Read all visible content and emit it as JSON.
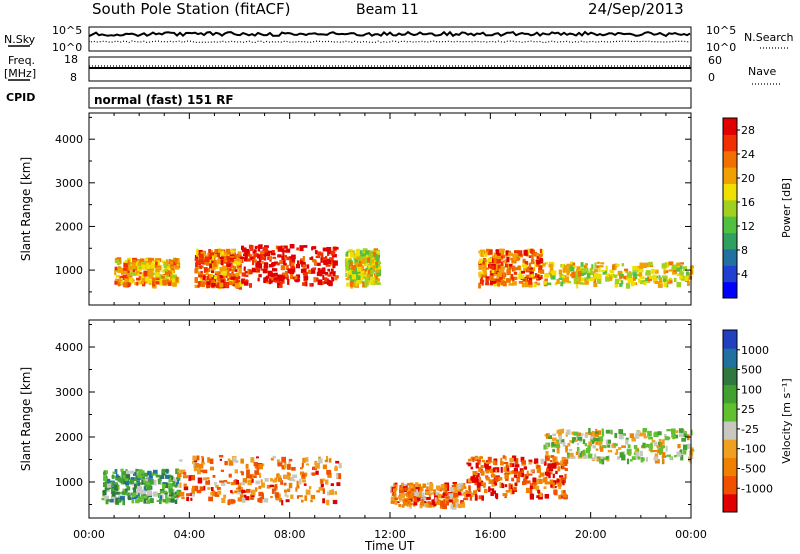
{
  "header": {
    "station": "South Pole Station (fitACF)",
    "beam": "Beam 11",
    "date": "24/Sep/2013"
  },
  "strips": {
    "nsky_label": "N.Sky",
    "nsky_top_tick": "10^5",
    "nsky_bottom_tick": "10^0",
    "nsearch_label": "N.Search",
    "nsearch_top_tick": "10^5",
    "nsearch_bottom_tick": "10^0",
    "freq_label_1": "Freq.",
    "freq_label_2": "[MHz]",
    "freq_top_tick": "18",
    "freq_bottom_tick": "8",
    "nave_label": "Nave",
    "nave_top_tick": "60",
    "nave_bottom_tick": "0",
    "cpid_label": "CPID",
    "cpid_text": "normal (fast) 151 RF"
  },
  "chart_data": [
    {
      "type": "heatmap",
      "panel": "power",
      "ylabel": "Slant Range [km]",
      "xlabel": "",
      "yticks": [
        "1000",
        "2000",
        "3000",
        "4000"
      ],
      "ylim": [
        200,
        4600
      ],
      "xlim_hours": [
        0,
        24
      ],
      "colorbar": {
        "label": "Power [dB]",
        "ticks": [
          "4",
          "8",
          "12",
          "16",
          "20",
          "24",
          "28"
        ],
        "colors": [
          "#0000ff",
          "#2040d0",
          "#2070a0",
          "#30a060",
          "#50c040",
          "#a0d020",
          "#f0e000",
          "#f0a000",
          "#f07000",
          "#f03000",
          "#e00000"
        ]
      },
      "regions": [
        {
          "t": [
            1.0,
            3.5
          ],
          "r": [
            700,
            1300
          ],
          "level": 7
        },
        {
          "t": [
            4.2,
            6.0
          ],
          "r": [
            650,
            1500
          ],
          "level": 8
        },
        {
          "t": [
            6.0,
            9.8
          ],
          "r": [
            700,
            1600
          ],
          "level": 10
        },
        {
          "t": [
            10.2,
            11.5
          ],
          "r": [
            700,
            1500
          ],
          "level": 6
        },
        {
          "t": [
            15.5,
            18.0
          ],
          "r": [
            700,
            1500
          ],
          "level": 8
        },
        {
          "t": [
            18.0,
            24.0
          ],
          "r": [
            700,
            1200
          ],
          "level": 6
        }
      ]
    },
    {
      "type": "heatmap",
      "panel": "velocity",
      "ylabel": "Slant Range [km]",
      "xlabel": "Time UT",
      "xticks": [
        "00:00",
        "04:00",
        "08:00",
        "12:00",
        "16:00",
        "20:00",
        "00:00"
      ],
      "yticks": [
        "1000",
        "2000",
        "3000",
        "4000"
      ],
      "ylim": [
        200,
        4600
      ],
      "xlim_hours": [
        0,
        24
      ],
      "colorbar": {
        "label": "Velocity [m s⁻¹]",
        "ticks": [
          "1000",
          "500",
          "100",
          "25",
          "-25",
          "-100",
          "-500",
          "-1000"
        ],
        "colors": [
          "#2040c0",
          "#2070a0",
          "#307840",
          "#40a030",
          "#60c030",
          "#c8c8c0",
          "#f0a020",
          "#f08000",
          "#f05000",
          "#e00000"
        ]
      },
      "regions": [
        {
          "t": [
            0.5,
            3.5
          ],
          "r": [
            600,
            1300
          ],
          "level": 3
        },
        {
          "t": [
            3.5,
            10.0
          ],
          "r": [
            600,
            1600
          ],
          "level": 7
        },
        {
          "t": [
            12.0,
            15.0
          ],
          "r": [
            500,
            1000
          ],
          "level": 7
        },
        {
          "t": [
            15.0,
            19.0
          ],
          "r": [
            700,
            1600
          ],
          "level": 8
        },
        {
          "t": [
            18.0,
            24.0
          ],
          "r": [
            1500,
            2200
          ],
          "level": 5
        }
      ]
    }
  ]
}
